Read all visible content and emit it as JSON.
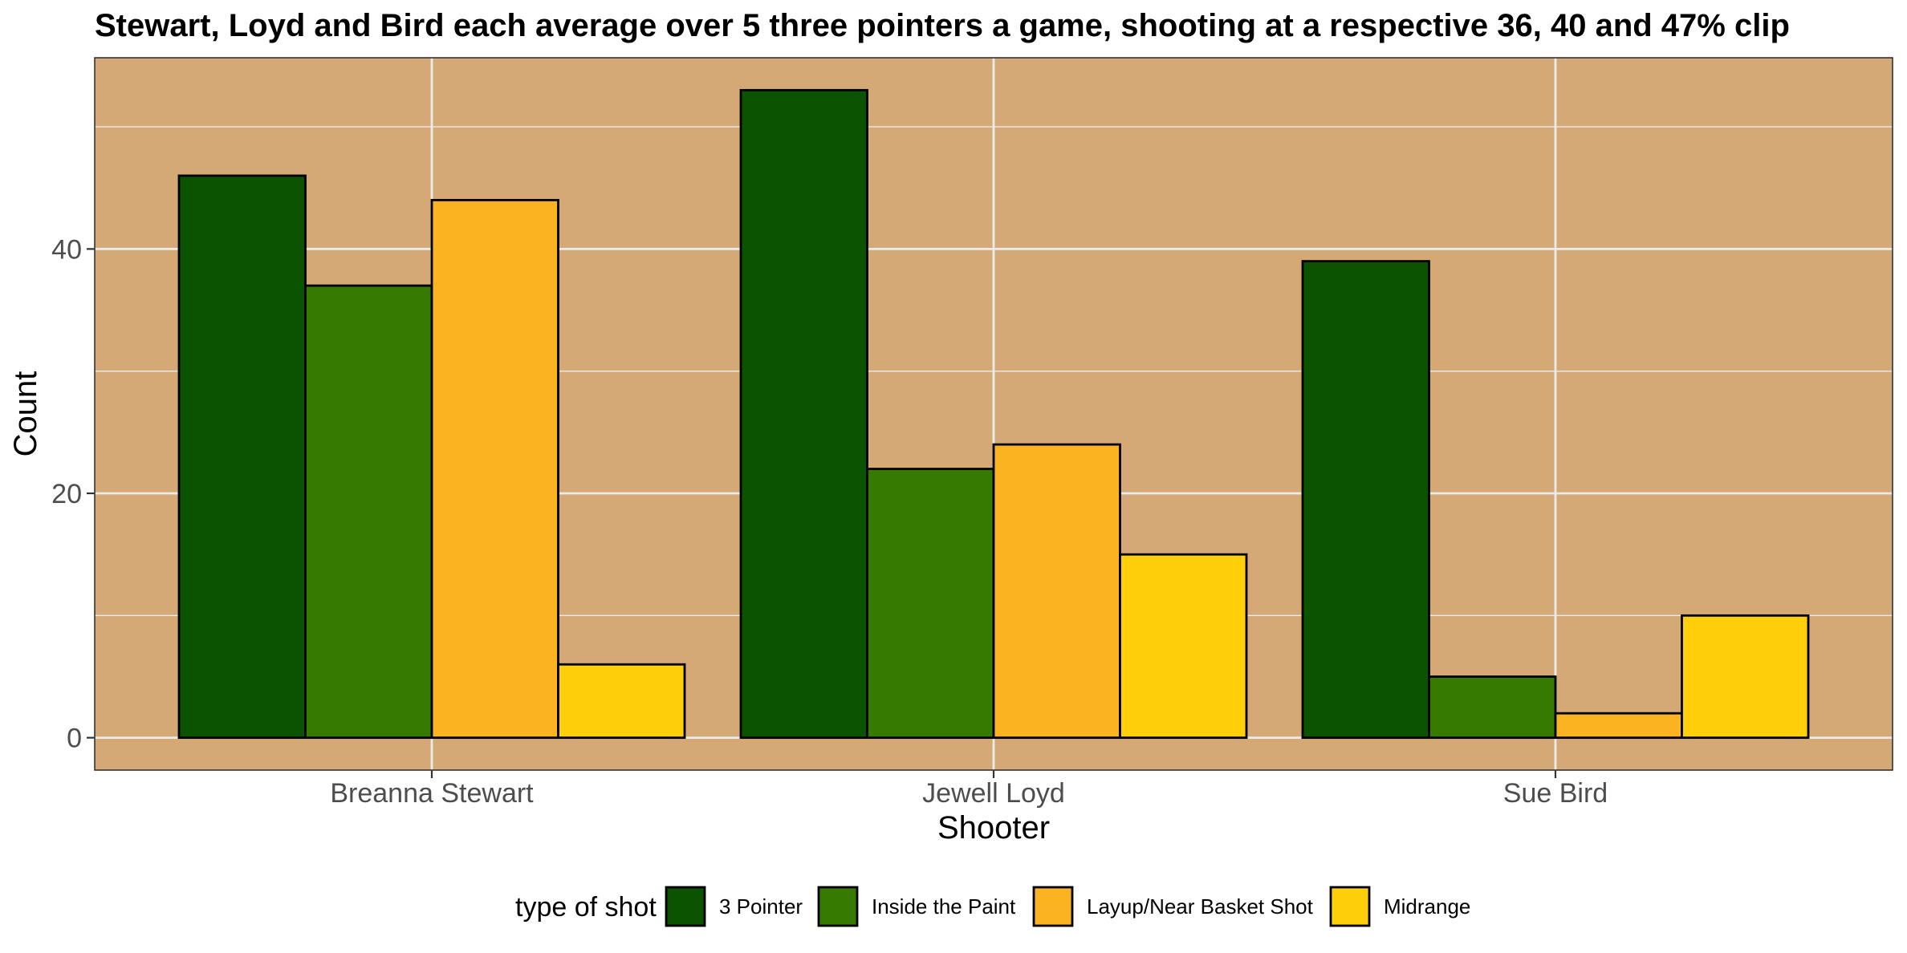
{
  "chart_data": {
    "type": "bar",
    "title": "Stewart, Loyd and Bird each average over 5 three pointers a game, shooting at a respective 36, 40 and 47% clip",
    "xlabel": "Shooter",
    "ylabel": "Count",
    "categories": [
      "Breanna Stewart",
      "Jewell Loyd",
      "Sue Bird"
    ],
    "series": [
      {
        "name": "3 Pointer",
        "color": "#0b5300",
        "values": [
          46,
          53,
          39
        ]
      },
      {
        "name": "Inside the Paint",
        "color": "#367a00",
        "values": [
          37,
          22,
          5
        ]
      },
      {
        "name": "Layup/Near Basket Shot",
        "color": "#fbb322",
        "values": [
          44,
          24,
          2
        ]
      },
      {
        "name": "Midrange",
        "color": "#fecf0a",
        "values": [
          6,
          15,
          10
        ]
      }
    ],
    "ylim": [
      -2.65,
      55.65
    ],
    "yticks": [
      0,
      20,
      40
    ],
    "grid": true,
    "panel_background": "#d5a975",
    "legend": {
      "title": "type of shot",
      "position": "bottom"
    }
  }
}
